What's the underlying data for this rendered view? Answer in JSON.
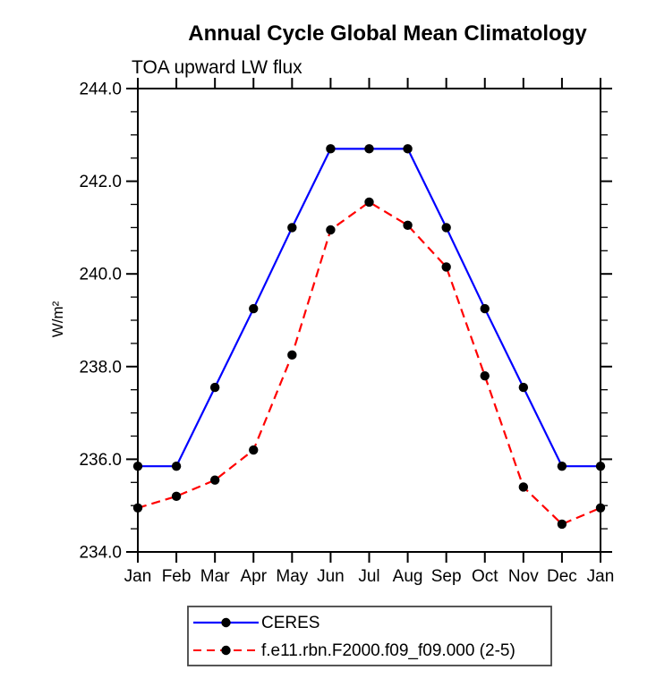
{
  "chart_data": {
    "type": "line",
    "title": "Annual Cycle Global Mean Climatology",
    "subtitle": "TOA upward LW flux",
    "ylabel": "W/m²",
    "xlabel": "",
    "ylim": [
      234.0,
      244.0
    ],
    "ytick_major_step": 2.0,
    "ytick_minor_step": 0.5,
    "y_tick_labels": [
      "234.0",
      "236.0",
      "238.0",
      "240.0",
      "242.0",
      "244.0"
    ],
    "grid": false,
    "legend_position": "bottom",
    "categories": [
      "Jan",
      "Feb",
      "Mar",
      "Apr",
      "May",
      "Jun",
      "Jul",
      "Aug",
      "Sep",
      "Oct",
      "Nov",
      "Dec",
      "Jan"
    ],
    "series": [
      {
        "name": "CERES",
        "color": "#0000ff",
        "line_style": "solid",
        "marker": "filled-circle",
        "marker_color": "#000000",
        "values": [
          235.85,
          235.85,
          237.55,
          239.25,
          241.0,
          242.7,
          242.7,
          242.7,
          241.0,
          239.25,
          237.55,
          235.85,
          235.85
        ]
      },
      {
        "name": "f.e11.rbn.F2000.f09_f09.000 (2-5)",
        "color": "#ff0000",
        "line_style": "dashed",
        "marker": "filled-circle",
        "marker_color": "#000000",
        "values": [
          234.95,
          235.2,
          235.55,
          236.2,
          238.25,
          240.95,
          241.55,
          241.05,
          240.15,
          237.8,
          235.4,
          234.6,
          234.95
        ]
      }
    ]
  }
}
